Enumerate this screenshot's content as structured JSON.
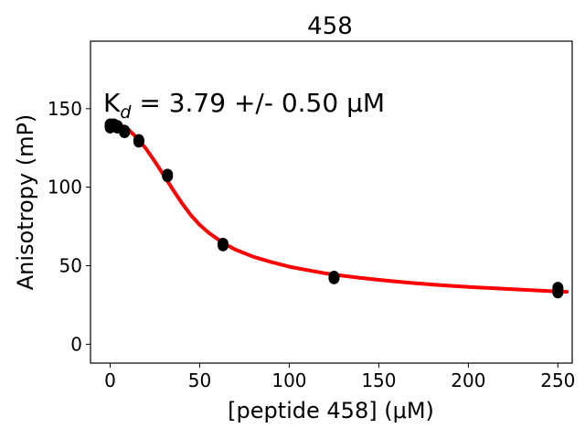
{
  "chart_data": {
    "type": "scatter",
    "title": "458",
    "xlabel": "[peptide 458] (μM)",
    "ylabel": "Anisotropy (mP)",
    "annotation": "Kd = 3.79 +/- 0.50 μM",
    "annotation_parts": {
      "prefix": "K",
      "subscript": "d",
      "suffix": " = 3.79 +/- 0.50 μM"
    },
    "xlim": [
      -11,
      258
    ],
    "ylim": [
      -12,
      193
    ],
    "xticks": [
      0,
      50,
      100,
      150,
      200,
      250
    ],
    "yticks": [
      0,
      50,
      100,
      150
    ],
    "grid": false,
    "series": [
      {
        "type": "scatter",
        "color": "#000000",
        "points": [
          {
            "x": 0,
            "y": 138
          },
          {
            "x": 0,
            "y": 140
          },
          {
            "x": 0,
            "y": 139
          },
          {
            "x": 2,
            "y": 139
          },
          {
            "x": 2,
            "y": 140
          },
          {
            "x": 4,
            "y": 138
          },
          {
            "x": 4,
            "y": 139
          },
          {
            "x": 8,
            "y": 135
          },
          {
            "x": 8,
            "y": 136
          },
          {
            "x": 16,
            "y": 129
          },
          {
            "x": 16,
            "y": 130
          },
          {
            "x": 32,
            "y": 107
          },
          {
            "x": 32,
            "y": 108
          },
          {
            "x": 63,
            "y": 63
          },
          {
            "x": 63,
            "y": 64
          },
          {
            "x": 125,
            "y": 42
          },
          {
            "x": 125,
            "y": 43
          },
          {
            "x": 250,
            "y": 33
          },
          {
            "x": 250,
            "y": 35
          },
          {
            "x": 250,
            "y": 36
          }
        ]
      },
      {
        "type": "line",
        "color": "#ff0000",
        "x": [
          0,
          5,
          10,
          15,
          20,
          25,
          30,
          35,
          40,
          45,
          50,
          55,
          60,
          65,
          70,
          80,
          90,
          100,
          110,
          120,
          130,
          140,
          150,
          160,
          170,
          180,
          190,
          200,
          210,
          220,
          230,
          240,
          250,
          255
        ],
        "y": [
          141.5,
          140.2,
          136.8,
          131.5,
          124.5,
          116.3,
          107.5,
          98.5,
          90.0,
          82.3,
          76.0,
          71.0,
          67.0,
          63.3,
          60.2,
          55.7,
          52.3,
          49.4,
          47.2,
          45.2,
          43.6,
          42.2,
          41.0,
          39.9,
          38.9,
          38.0,
          37.2,
          36.5,
          35.9,
          35.3,
          34.7,
          34.1,
          33.6,
          33.4
        ]
      }
    ]
  }
}
